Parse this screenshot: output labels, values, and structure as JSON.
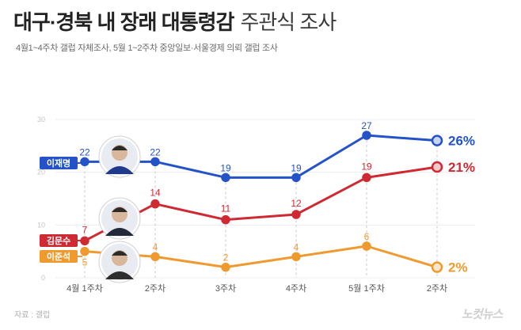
{
  "header": {
    "title_main": "대구·경북 내 장래 대통령감",
    "title_sub": "주관식 조사",
    "subtitle": "4월1~4주차 갤럽 자체조사, 5월 1~2주차 중앙일보·서울경제 의뢰 갤럽 조사"
  },
  "footer": {
    "source": "자료 : 갤럽",
    "logo": "노컷뉴스"
  },
  "chart_data": {
    "type": "line",
    "categories": [
      "4월 1주차",
      "2주차",
      "3주차",
      "4주차",
      "5월 1주차",
      "2주차"
    ],
    "ylim": [
      0,
      30
    ],
    "yticks": [
      0,
      10,
      20,
      30
    ],
    "grid": true,
    "series": [
      {
        "name": "이재명",
        "values": [
          22,
          22,
          19,
          19,
          27,
          26
        ],
        "color": "#2453c9",
        "labels": [
          "22",
          "22",
          "19",
          "19",
          "27",
          "26%"
        ]
      },
      {
        "name": "김문수",
        "values": [
          7,
          14,
          11,
          12,
          19,
          21
        ],
        "color": "#cf2a33",
        "labels": [
          "7",
          "14",
          "11",
          "12",
          "19",
          "21%"
        ]
      },
      {
        "name": "이준석",
        "values": [
          5,
          4,
          2,
          4,
          6,
          2
        ],
        "color": "#ef9a2f",
        "labels": [
          "5",
          "4",
          "2",
          "4",
          "6",
          "2%"
        ]
      }
    ]
  }
}
